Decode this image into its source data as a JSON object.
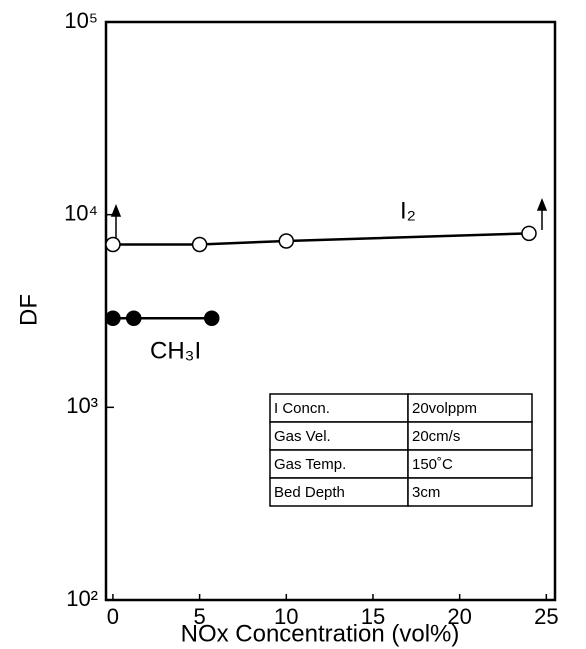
{
  "chart_data": {
    "type": "scatter",
    "xlabel": "NOx Concentration (vol%)",
    "ylabel": "DF",
    "xlim": [
      -0.4,
      25.5
    ],
    "ylim": [
      100,
      100000
    ],
    "log_y": true,
    "xticks": [
      0,
      5,
      10,
      15,
      20,
      25
    ],
    "yticks": [
      {
        "value": 100,
        "label": "10²"
      },
      {
        "value": 1000,
        "label": "10³"
      },
      {
        "value": 10000,
        "label": "10⁴"
      },
      {
        "value": 100000,
        "label": "10⁵"
      }
    ],
    "series": [
      {
        "name": "I₂",
        "color": "#000",
        "filled": false,
        "x": [
          0,
          5,
          10,
          24
        ],
        "values": [
          7000,
          7000,
          7300,
          8000
        ]
      },
      {
        "name": "CH₃I",
        "color": "#000",
        "filled": true,
        "x": [
          0,
          1.2,
          5.7
        ],
        "values": [
          2900,
          2900,
          2900
        ]
      }
    ],
    "annotation_table": [
      [
        "I Concn.",
        "20volppm"
      ],
      [
        "Gas Vel.",
        "20cm/s"
      ],
      [
        "Gas Temp.",
        "150˚C"
      ],
      [
        "Bed Depth",
        "3cm"
      ]
    ]
  }
}
